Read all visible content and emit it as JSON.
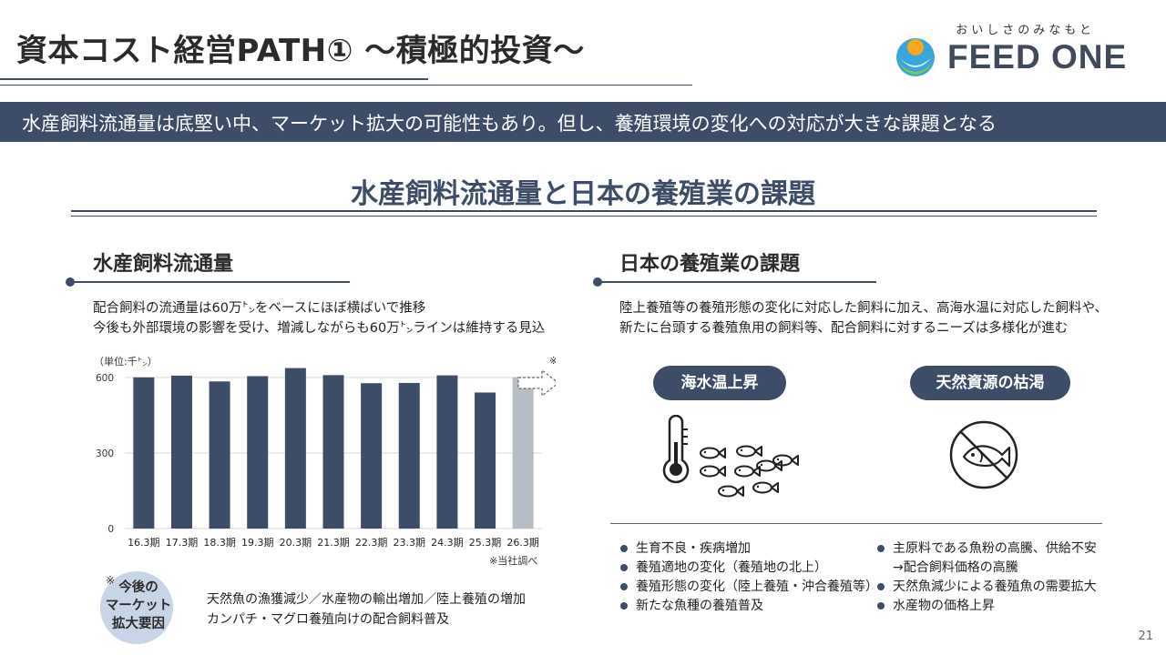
{
  "header": {
    "title": "資本コスト経営PATH① ～積極的投資～",
    "logo_tagline": "おいしさのみなもと",
    "logo_name": "FEED ONE"
  },
  "banner": {
    "text": "水産飼料流通量は底堅い中、マーケット拡大の可能性もあり。但し、養殖環境の変化への対応が大きな課題となる"
  },
  "section": {
    "title": "水産飼料流通量と日本の養殖業の課題"
  },
  "left": {
    "heading": "水産飼料流通量",
    "desc_lines": [
      "配合飼料の流通量は60万㌧をベースにほぼ横ばいで推移",
      "今後も外部環境の影響を受け、増減しながらも60万㌧ラインは維持する見込"
    ],
    "forecast_mark": "※",
    "source_note": "※当社調べ",
    "badge_mark": "※",
    "badge_lines": [
      "今後の",
      "マーケット",
      "拡大要因"
    ],
    "factor_lines": [
      "天然魚の漁獲減少／水産物の輸出増加／陸上養殖の増加",
      "カンパチ・マグロ養殖向けの配合飼料普及"
    ]
  },
  "chart_data": {
    "type": "bar",
    "unit_label": "（単位:千㌧）",
    "categories": [
      "16.3期",
      "17.3期",
      "18.3期",
      "19.3期",
      "20.3期",
      "21.3期",
      "22.3期",
      "23.3期",
      "24.3期",
      "25.3期",
      "26.3期"
    ],
    "values": [
      600,
      607,
      584,
      605,
      637,
      609,
      577,
      578,
      608,
      540,
      600
    ],
    "forecast_index": 10,
    "yticks": [
      0,
      300,
      600
    ],
    "ylim": [
      0,
      650
    ],
    "colors": {
      "actual": "#3d4d68",
      "forecast": "#b6bcc4",
      "grid": "#d9d9d9"
    },
    "grid": true
  },
  "right": {
    "heading": "日本の養殖業の課題",
    "desc_lines": [
      "陸上養殖等の養殖形態の変化に対応した飼料に加え、高海水温に対応した飼料や、",
      "新たに台頭する養殖魚用の飼料等、配合飼料に対するニーズは多様化が進む"
    ],
    "pill_left": "海水温上昇",
    "pill_right": "天然資源の枯渇",
    "bullets_left": [
      "生育不良・疾病増加",
      "養殖適地の変化（養殖地の北上）",
      "養殖形態の変化（陸上養殖・沖合養殖等）",
      "新たな魚種の養殖普及"
    ],
    "bullets_right": [
      "主原料である魚粉の高騰、供給不安",
      "→配合飼料価格の高騰",
      "天然魚減少による養殖魚の需要拡大",
      "水産物の価格上昇"
    ]
  },
  "page_number": "21",
  "icons": [
    "thermometer-icon",
    "fish-school-icon",
    "no-fish-icon",
    "forecast-arrow-icon"
  ]
}
